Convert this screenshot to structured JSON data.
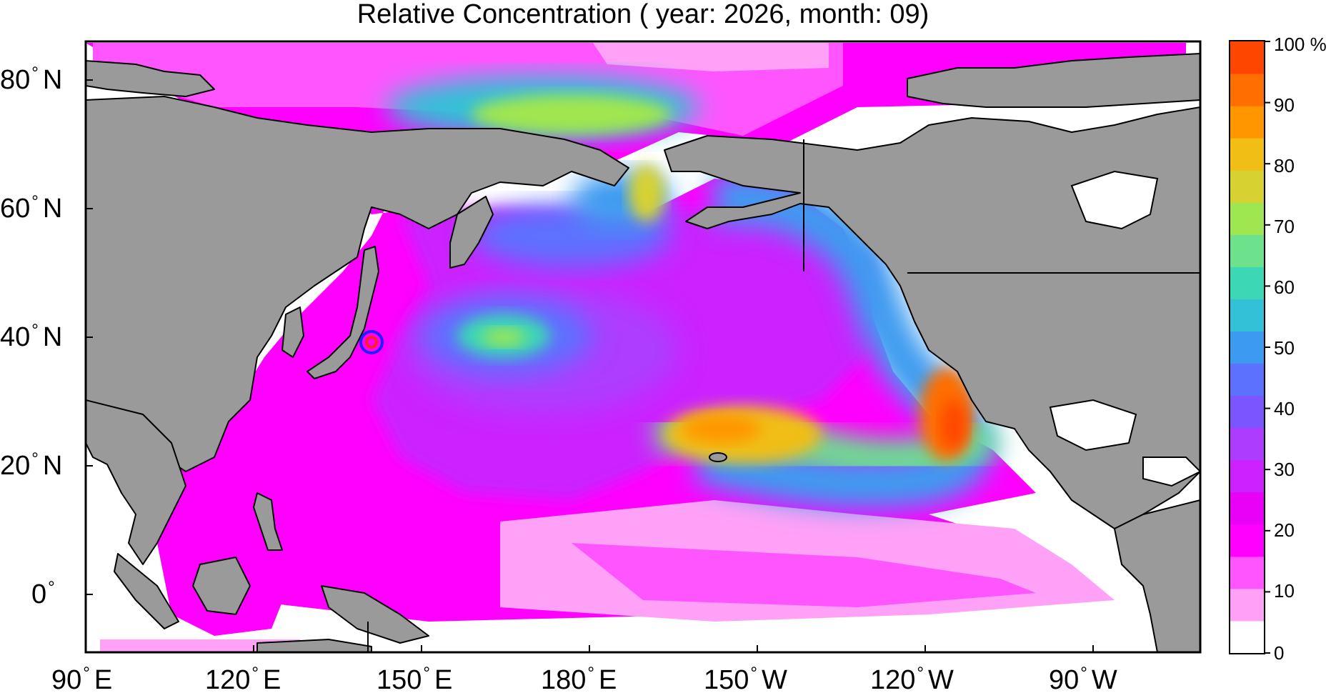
{
  "title": "Relative Concentration ( year: 2026, month: 09)",
  "colors": {
    "land": "#9a9a9a",
    "coast": "#000000",
    "colorbar": [
      "#ffffff",
      "#ffa1f7",
      "#ff55ff",
      "#ff00ff",
      "#e800f7",
      "#cb22ff",
      "#ad3cff",
      "#7b55ff",
      "#5d71ff",
      "#3c9bf0",
      "#32c1d6",
      "#3cd7b4",
      "#6ee18c",
      "#a0e650",
      "#d7d232",
      "#f0be14",
      "#ff9600",
      "#ff6e00",
      "#ff4600"
    ],
    "marker_outer": "#1f1fff",
    "marker_inner": "#ff2020"
  },
  "axes": {
    "x_ticks": [
      {
        "value": "90",
        "hemi": "E"
      },
      {
        "value": "120",
        "hemi": "E"
      },
      {
        "value": "150",
        "hemi": "E"
      },
      {
        "value": "180",
        "hemi": "E"
      },
      {
        "value": "150",
        "hemi": "W"
      },
      {
        "value": "120",
        "hemi": "W"
      },
      {
        "value": "90",
        "hemi": "W"
      }
    ],
    "y_ticks": [
      {
        "value": "80",
        "hemi": "N"
      },
      {
        "value": "60",
        "hemi": "N"
      },
      {
        "value": "40",
        "hemi": "N"
      },
      {
        "value": "20",
        "hemi": "N"
      },
      {
        "value": "0",
        "hemi": ""
      }
    ],
    "deg": "°"
  },
  "colorbar": {
    "labels": [
      "100 %",
      "90",
      "80",
      "70",
      "60",
      "50",
      "40",
      "30",
      "20",
      "10",
      "0"
    ]
  },
  "marker": {
    "lon_e": 141.0,
    "lat_n": 37.4
  }
}
